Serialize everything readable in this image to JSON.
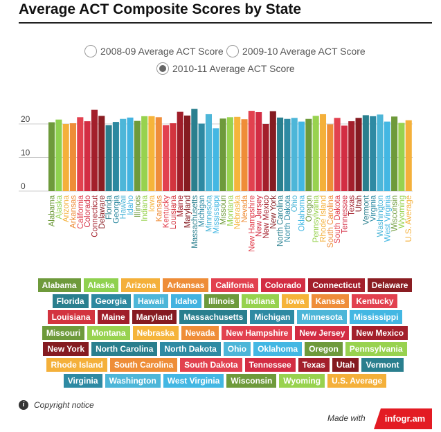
{
  "title": "Average ACT Composite Scores by State",
  "radios": [
    {
      "label": "2008-09 Average ACT Score",
      "selected": false
    },
    {
      "label": "2009-10 Average ACT Score",
      "selected": false
    },
    {
      "label": "2010-11 Average ACT Score",
      "selected": true
    }
  ],
  "chart_data": {
    "type": "bar",
    "title": "",
    "xlabel": "",
    "ylabel": "",
    "ylim": [
      0,
      25
    ],
    "yticks": [
      0,
      10,
      20
    ],
    "grid": true,
    "series_name": "2010-11 Average ACT Score",
    "categories": [
      "Alabama",
      "Alaska",
      "Arizona",
      "Arkansas",
      "California",
      "Colorado",
      "Connecticut",
      "Delaware",
      "Florida",
      "Georgia",
      "Hawaii",
      "Idaho",
      "Illinois",
      "Indiana",
      "Iowa",
      "Kansas",
      "Kentucky",
      "Louisiana",
      "Maine",
      "Maryland",
      "Massachusetts",
      "Michigan",
      "Minnesota",
      "Mississippi",
      "Missouri",
      "Montana",
      "Nebraska",
      "Nevada",
      "New Hampshire",
      "New Jersey",
      "New Mexico",
      "New York",
      "North Carolina",
      "North Dakota",
      "Ohio",
      "Oklahoma",
      "Oregon",
      "Pennsylvania",
      "Rhode Island",
      "South Carolina",
      "South Dakota",
      "Tennessee",
      "Texas",
      "Utah",
      "Vermont",
      "Virginia",
      "Washington",
      "West Virginia",
      "Wisconsin",
      "Wyoming",
      "U.S. Average"
    ],
    "values": [
      20.5,
      21.3,
      20.0,
      20.2,
      22.0,
      20.8,
      24.2,
      22.4,
      19.6,
      20.6,
      21.5,
      21.9,
      20.9,
      22.3,
      22.3,
      22.0,
      19.6,
      20.2,
      23.6,
      22.5,
      24.5,
      20.1,
      22.9,
      18.7,
      21.6,
      22.0,
      22.1,
      21.4,
      23.9,
      23.5,
      20.0,
      23.8,
      21.9,
      21.5,
      21.8,
      20.7,
      21.5,
      22.4,
      22.9,
      19.9,
      21.8,
      19.5,
      20.8,
      21.8,
      22.6,
      22.3,
      22.8,
      20.7,
      22.2,
      20.3,
      21.1
    ],
    "colors": [
      "#6e9a3b",
      "#8fd14f",
      "#f4b03a",
      "#ee8d38",
      "#e2414f",
      "#d32d43",
      "#a31f2b",
      "#8a1d22",
      "#2a7f8e",
      "#2d89a0",
      "#4db6d8",
      "#43b3e0",
      "#6e9a3b",
      "#97d24e",
      "#f6b43a",
      "#ef8d3a",
      "#e2414f",
      "#d3343f",
      "#a01e2a",
      "#851b21",
      "#2a7f8e",
      "#2e8aa3",
      "#4db6d8",
      "#43b7e3",
      "#6e9a3b",
      "#98d24f",
      "#f5b43b",
      "#ef8d38",
      "#e2414f",
      "#d22d43",
      "#a31f2b",
      "#851b21",
      "#2a7f8e",
      "#2e8aa3",
      "#4db6d8",
      "#43b7e3",
      "#6e9a3b",
      "#98d24f",
      "#f4b03a",
      "#ee8d38",
      "#e2414f",
      "#d32d43",
      "#a31f2b",
      "#851b21",
      "#2a7f8e",
      "#2e8aa3",
      "#4db6d8",
      "#43b7e3",
      "#6e9a3b",
      "#98d24f",
      "#f4b03a"
    ]
  },
  "legend": {
    "rows": [
      [
        {
          "label": "Alabama",
          "color": "#6e9a3b"
        },
        {
          "label": "Alaska",
          "color": "#8fd14f"
        },
        {
          "label": "Arizona",
          "color": "#f4b03a"
        },
        {
          "label": "Arkansas",
          "color": "#ee8d38"
        },
        {
          "label": "California",
          "color": "#e2414f"
        },
        {
          "label": "Colorado",
          "color": "#d32d43"
        },
        {
          "label": "Connecticut",
          "color": "#a31f2b"
        },
        {
          "label": "Delaware",
          "color": "#8a1d22"
        }
      ],
      [
        {
          "label": "Florida",
          "color": "#2a7f8e"
        },
        {
          "label": "Georgia",
          "color": "#2d89a0"
        },
        {
          "label": "Hawaii",
          "color": "#4db6d8"
        },
        {
          "label": "Idaho",
          "color": "#43b3e0"
        },
        {
          "label": "Illinois",
          "color": "#6e9a3b"
        },
        {
          "label": "Indiana",
          "color": "#97d24e"
        },
        {
          "label": "Iowa",
          "color": "#f6b43a"
        },
        {
          "label": "Kansas",
          "color": "#ef8d3a"
        },
        {
          "label": "Kentucky",
          "color": "#e2414f"
        }
      ],
      [
        {
          "label": "Louisiana",
          "color": "#d3343f"
        },
        {
          "label": "Maine",
          "color": "#a01e2a"
        },
        {
          "label": "Maryland",
          "color": "#851b21"
        },
        {
          "label": "Massachusetts",
          "color": "#2a7f8e"
        },
        {
          "label": "Michigan",
          "color": "#2e8aa3"
        },
        {
          "label": "Minnesota",
          "color": "#4db6d8"
        },
        {
          "label": "Mississippi",
          "color": "#43b7e3"
        }
      ],
      [
        {
          "label": "Missouri",
          "color": "#6e9a3b"
        },
        {
          "label": "Montana",
          "color": "#98d24f"
        },
        {
          "label": "Nebraska",
          "color": "#f5b43b"
        },
        {
          "label": "Nevada",
          "color": "#ef8d38"
        },
        {
          "label": "New Hampshire",
          "color": "#e2414f"
        },
        {
          "label": "New Jersey",
          "color": "#d22d43"
        },
        {
          "label": "New Mexico",
          "color": "#a31f2b"
        }
      ],
      [
        {
          "label": "New York",
          "color": "#851b21"
        },
        {
          "label": "North Carolina",
          "color": "#2a7f8e"
        },
        {
          "label": "North Dakota",
          "color": "#2e8aa3"
        },
        {
          "label": "Ohio",
          "color": "#4db6d8"
        },
        {
          "label": "Oklahoma",
          "color": "#43b7e3"
        },
        {
          "label": "Oregon",
          "color": "#6e9a3b"
        },
        {
          "label": "Pennsylvania",
          "color": "#98d24f"
        }
      ],
      [
        {
          "label": "Rhode Island",
          "color": "#f4b03a"
        },
        {
          "label": "South Carolina",
          "color": "#ee8d38"
        },
        {
          "label": "South Dakota",
          "color": "#e2414f"
        },
        {
          "label": "Tennessee",
          "color": "#d32d43"
        },
        {
          "label": "Texas",
          "color": "#a31f2b"
        },
        {
          "label": "Utah",
          "color": "#851b21"
        },
        {
          "label": "Vermont",
          "color": "#2a7f8e"
        }
      ],
      [
        {
          "label": "Virginia",
          "color": "#2e8aa3"
        },
        {
          "label": "Washington",
          "color": "#4db6d8"
        },
        {
          "label": "West Virginia",
          "color": "#43b7e3"
        },
        {
          "label": "Wisconsin",
          "color": "#6e9a3b"
        },
        {
          "label": "Wyoming",
          "color": "#98d24f"
        },
        {
          "label": "U.S. Average",
          "color": "#f4b03a"
        }
      ]
    ]
  },
  "footer": {
    "info_glyph": "i",
    "copyright": "Copyright notice",
    "made_with": "Made with",
    "brand": "infogr.am"
  }
}
